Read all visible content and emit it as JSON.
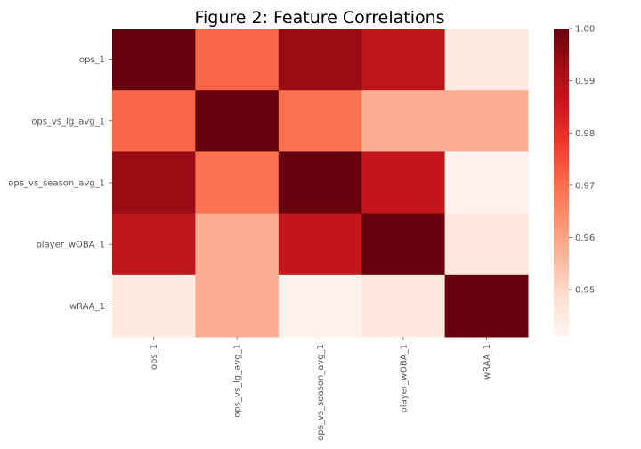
{
  "chart_data": {
    "type": "heatmap",
    "title": "Figure 2: Feature Correlations",
    "rows": [
      "ops_1",
      "ops_vs_lg_avg_1",
      "ops_vs_season_avg_1",
      "player_wOBA_1",
      "wRAA_1"
    ],
    "cols": [
      "ops_1",
      "ops_vs_lg_avg_1",
      "ops_vs_season_avg_1",
      "player_wOBA_1",
      "wRAA_1"
    ],
    "values": [
      [
        1.0,
        0.971,
        0.994,
        0.988,
        0.945
      ],
      [
        0.971,
        1.0,
        0.969,
        0.958,
        0.958
      ],
      [
        0.994,
        0.969,
        1.0,
        0.987,
        0.942
      ],
      [
        0.988,
        0.958,
        0.987,
        1.0,
        0.946
      ],
      [
        0.945,
        0.958,
        0.942,
        0.946,
        1.0
      ]
    ],
    "colorbar": {
      "min": 0.941,
      "max": 1.0,
      "ticks": [
        "1.00",
        "0.99",
        "0.98",
        "0.97",
        "0.96",
        "0.95"
      ],
      "tick_values": [
        1.0,
        0.99,
        0.98,
        0.97,
        0.96,
        0.95
      ],
      "colormap": "Reds",
      "colors": [
        "#fff5f0",
        "#fee0d2",
        "#fcbba1",
        "#fc9272",
        "#fb6a4a",
        "#ef3b2c",
        "#cb181d",
        "#a50f15",
        "#67000d"
      ]
    }
  }
}
